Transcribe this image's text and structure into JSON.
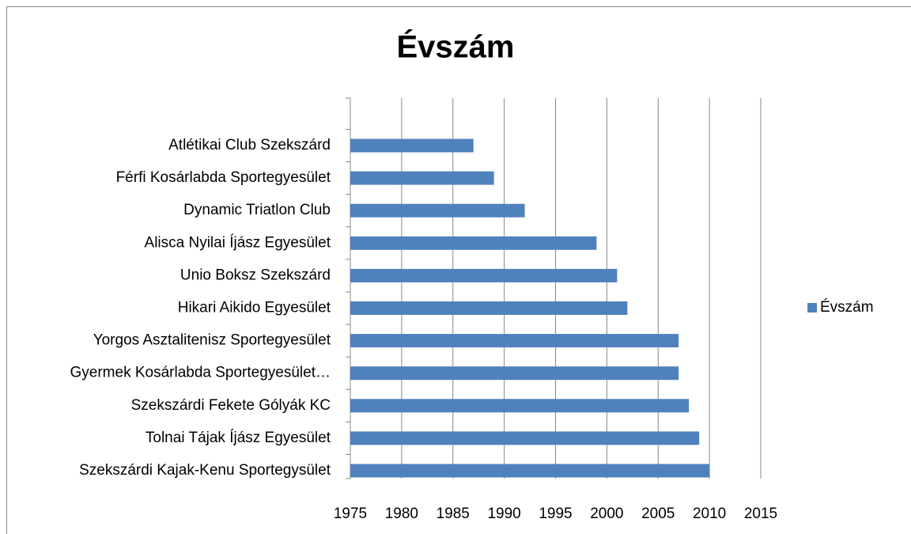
{
  "chart_data": {
    "type": "bar",
    "orientation": "horizontal",
    "title": "Évszám",
    "categories": [
      "Atlétikai Club Szekszárd",
      "Férfi Kosárlabda Sportegyesület",
      "Dynamic Triatlon Club",
      "Alisca Nyilai Íjász Egyesület",
      "Unio Boksz Szekszárd",
      "Hikari Aikido Egyesület",
      "Yorgos Asztalitenisz Sportegyesület",
      "Gyermek Kosárlabda Sportegyesület…",
      "Szekszárdi Fekete Gólyák KC",
      "Tolnai Tájak Íjász Egyesület",
      "Szekszárdi Kajak-Kenu Sportegysület"
    ],
    "series": [
      {
        "name": "Évszám",
        "color": "#4f81bd",
        "values": [
          1987,
          1989,
          1992,
          1999,
          2001,
          2002,
          2007,
          2007,
          2008,
          2009,
          2010
        ]
      }
    ],
    "xlim": [
      1975,
      2015
    ],
    "xticks": [
      1975,
      1980,
      1985,
      1990,
      1995,
      2000,
      2005,
      2010,
      2015
    ],
    "grid": true,
    "legend": "right"
  }
}
